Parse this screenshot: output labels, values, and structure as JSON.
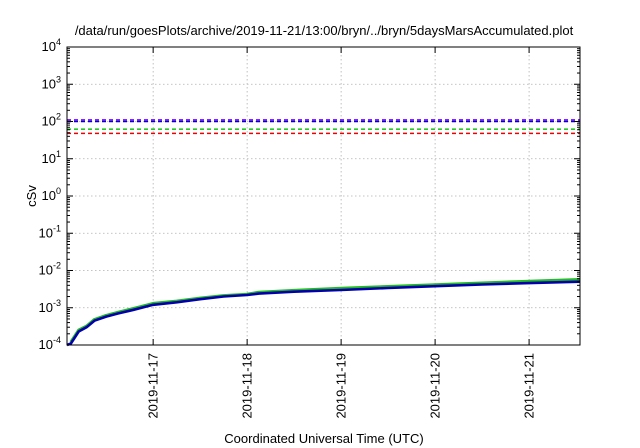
{
  "chart_data": {
    "type": "line",
    "title": "/data/run/goesPlots/archive/2019-11-21/13:00/bryn/../bryn/5daysMarsAccumulated.plot",
    "xlabel": "Coordinated Universal Time (UTC)",
    "ylabel": "cSv",
    "y_scale": "log",
    "ylim": [
      0.0001,
      10000
    ],
    "xlim": [
      "2019-11-16 02:00",
      "2019-11-21 13:00"
    ],
    "x_ticks": [
      "2019-11-17",
      "2019-11-18",
      "2019-11-19",
      "2019-11-20",
      "2019-11-21"
    ],
    "y_ticks": [
      {
        "value": 0.0001,
        "base": "10",
        "exp": "-4"
      },
      {
        "value": 0.001,
        "base": "10",
        "exp": "-3"
      },
      {
        "value": 0.01,
        "base": "10",
        "exp": "-2"
      },
      {
        "value": 0.1,
        "base": "10",
        "exp": "-1"
      },
      {
        "value": 1,
        "base": "10",
        "exp": "0"
      },
      {
        "value": 10,
        "base": "10",
        "exp": "1"
      },
      {
        "value": 100,
        "base": "10",
        "exp": "2"
      },
      {
        "value": 1000,
        "base": "10",
        "exp": "3"
      },
      {
        "value": 10000,
        "base": "10",
        "exp": "4"
      }
    ],
    "grid": true,
    "legend": "none",
    "reference_lines": [
      {
        "value": 110,
        "color": "#7f00ff"
      },
      {
        "value": 100,
        "color": "#0000cc"
      },
      {
        "value": 62,
        "color": "#22cc22"
      },
      {
        "value": 48,
        "color": "#ee0000"
      }
    ],
    "series": [
      {
        "color": "#22bb22",
        "x": [
          "2019-11-16 03:00",
          "2019-11-16 05:00",
          "2019-11-16 07:00",
          "2019-11-16 09:00",
          "2019-11-16 12:00",
          "2019-11-16 15:00",
          "2019-11-16 19:00",
          "2019-11-17 00:00",
          "2019-11-17 06:00",
          "2019-11-17 12:00",
          "2019-11-17 18:00",
          "2019-11-18 00:00",
          "2019-11-18 03:00",
          "2019-11-18 12:00",
          "2019-11-19 00:00",
          "2019-11-19 12:00",
          "2019-11-20 00:00",
          "2019-11-20 12:00",
          "2019-11-21 00:00",
          "2019-11-21 13:00"
        ],
        "values": [
          0.00012,
          0.00025,
          0.00032,
          0.00048,
          0.00062,
          0.00075,
          0.00095,
          0.0013,
          0.0015,
          0.0018,
          0.0021,
          0.0023,
          0.0026,
          0.0029,
          0.0033,
          0.0037,
          0.0041,
          0.0046,
          0.0051,
          0.0057
        ]
      },
      {
        "color": "#0000aa",
        "x": [
          "2019-11-16 02:00",
          "2019-11-16 03:00",
          "2019-11-16 05:00",
          "2019-11-16 07:00",
          "2019-11-16 09:00",
          "2019-11-16 12:00",
          "2019-11-16 15:00",
          "2019-11-16 19:00",
          "2019-11-17 00:00",
          "2019-11-17 06:00",
          "2019-11-17 12:00",
          "2019-11-17 18:00",
          "2019-11-18 00:00",
          "2019-11-18 03:00",
          "2019-11-18 12:00",
          "2019-11-19 00:00",
          "2019-11-19 12:00",
          "2019-11-20 00:00",
          "2019-11-20 12:00",
          "2019-11-21 00:00",
          "2019-11-21 13:00"
        ],
        "values": [
          0.0001,
          0.00011,
          0.00023,
          0.0003,
          0.00045,
          0.00058,
          0.0007,
          0.00088,
          0.0012,
          0.0014,
          0.0017,
          0.002,
          0.0022,
          0.0024,
          0.0027,
          0.003,
          0.0034,
          0.0038,
          0.0042,
          0.0046,
          0.005
        ]
      }
    ]
  }
}
